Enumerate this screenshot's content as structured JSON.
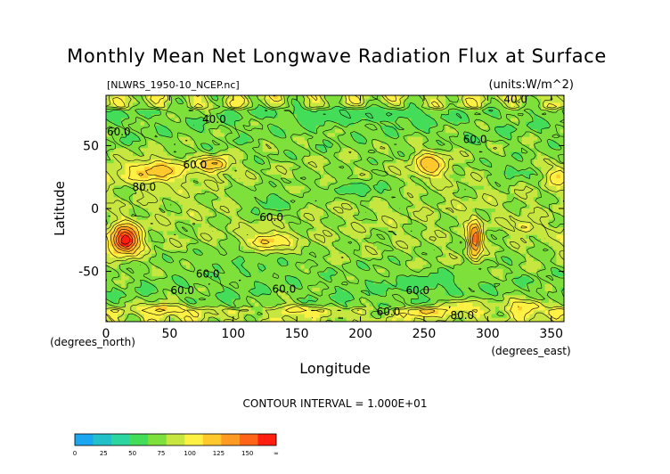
{
  "chart_data": {
    "type": "heatmap",
    "title": "Monthly Mean Net Longwave Radiation Flux at Surface",
    "subtitle_left": "[NLWRS_1950-10_NCEP.nc]",
    "subtitle_right": "(units:W/m^2)",
    "xlabel": "Longitude",
    "ylabel": "Latitude",
    "x_unit_label": "(degrees_east)",
    "y_unit_label": "(degrees_north)",
    "xlim": [
      0,
      360
    ],
    "ylim": [
      -90,
      90
    ],
    "x_ticks": [
      0,
      50,
      100,
      150,
      200,
      250,
      300,
      350
    ],
    "y_ticks": [
      -50,
      0,
      50
    ],
    "contour_interval_text": "CONTOUR INTERVAL = 1.000E+01",
    "contour_labels": [
      {
        "text": "40.0",
        "lon": 322,
        "lat": 84
      },
      {
        "text": "40.0",
        "lon": 85,
        "lat": 68
      },
      {
        "text": "60.0",
        "lon": 10,
        "lat": 58
      },
      {
        "text": "60.0",
        "lon": 290,
        "lat": 52
      },
      {
        "text": "60.0",
        "lon": 70,
        "lat": 32
      },
      {
        "text": "80.0",
        "lon": 30,
        "lat": 14
      },
      {
        "text": "60.0",
        "lon": 130,
        "lat": -10
      },
      {
        "text": "60.0",
        "lon": 80,
        "lat": -55
      },
      {
        "text": "60.0",
        "lon": 60,
        "lat": -68
      },
      {
        "text": "60.0",
        "lon": 140,
        "lat": -67
      },
      {
        "text": "60.0",
        "lon": 245,
        "lat": -68
      },
      {
        "text": "60.0",
        "lon": 222,
        "lat": -85
      },
      {
        "text": "80.0",
        "lon": 280,
        "lat": -88
      }
    ],
    "colorbar": {
      "labels": [
        "0",
        "25",
        "50",
        "75",
        "100",
        "125",
        "150",
        "∞"
      ],
      "colors": [
        "#1aa6f0",
        "#22c0c8",
        "#2bd6a0",
        "#44dd5a",
        "#7ee03a",
        "#c8e640",
        "#fff044",
        "#ffc82c",
        "#ff9a22",
        "#ff6418",
        "#ff1e10"
      ]
    },
    "field": {
      "note_levels": [
        0,
        12.5,
        25,
        37.5,
        50,
        62.5,
        75,
        87.5,
        100,
        112.5,
        125,
        150
      ],
      "features": [
        {
          "lon": 40,
          "lat": 30,
          "rlon": 28,
          "rlat": 10,
          "value": 95
        },
        {
          "lon": 85,
          "lat": 35,
          "rlon": 12,
          "rlat": 6,
          "value": 105
        },
        {
          "lon": 255,
          "lat": 35,
          "rlon": 14,
          "rlat": 10,
          "value": 100
        },
        {
          "lon": 15,
          "lat": -25,
          "rlon": 12,
          "rlat": 12,
          "value": 135
        },
        {
          "lon": 128,
          "lat": -27,
          "rlon": 18,
          "rlat": 8,
          "value": 95
        },
        {
          "lon": 290,
          "lat": -25,
          "rlon": 5,
          "rlat": 15,
          "value": 120
        },
        {
          "lon": 330,
          "lat": -15,
          "rlon": 10,
          "rlat": 5,
          "value": 80
        },
        {
          "lon": 355,
          "lat": 25,
          "rlon": 8,
          "rlat": 8,
          "value": 90
        },
        {
          "lon": 250,
          "lat": -82,
          "rlon": 15,
          "rlat": 4,
          "value": 95
        },
        {
          "lon": 330,
          "lat": -78,
          "rlon": 20,
          "rlat": 6,
          "value": 90
        },
        {
          "lon": 150,
          "lat": -80,
          "rlon": 20,
          "rlat": 4,
          "value": 85
        },
        {
          "lon": 45,
          "lat": -80,
          "rlon": 25,
          "rlat": 5,
          "value": 90
        },
        {
          "lon": 280,
          "lat": -78,
          "rlon": 20,
          "rlat": 6,
          "value": 80
        },
        {
          "lon": 130,
          "lat": 5,
          "rlon": 25,
          "rlat": 10,
          "value": 45
        },
        {
          "lon": 200,
          "lat": 15,
          "rlon": 30,
          "rlat": 8,
          "value": 45
        },
        {
          "lon": 110,
          "lat": -45,
          "rlon": 40,
          "rlat": 12,
          "value": 50
        },
        {
          "lon": 320,
          "lat": 30,
          "rlon": 15,
          "rlat": 8,
          "value": 45
        },
        {
          "lon": 200,
          "lat": 75,
          "rlon": 60,
          "rlat": 6,
          "value": 40
        },
        {
          "lon": 250,
          "lat": -60,
          "rlon": 40,
          "rlat": 8,
          "value": 45
        }
      ]
    }
  }
}
